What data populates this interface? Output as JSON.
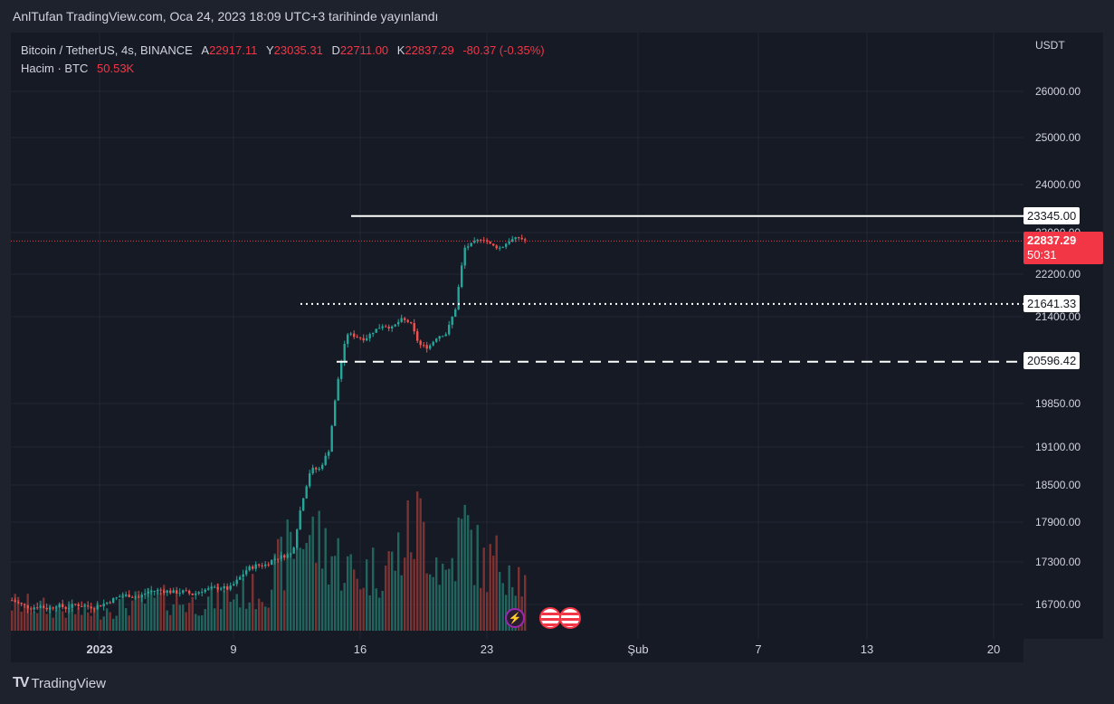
{
  "header": {
    "published_text": "AnlTufan TradingView.com, Oca 24, 2023 18:09 UTC+3 tarihinde yayınlandı"
  },
  "legend": {
    "symbol": "Bitcoin / TetherUS, 4s, BINANCE",
    "open_label": "A",
    "open": "22917.11",
    "high_label": "Y",
    "high": "23035.31",
    "low_label": "D",
    "low": "22711.00",
    "close_label": "K",
    "close": "22837.29",
    "change": "-80.37 (-0.35%)",
    "volume_label": "Hacim · BTC",
    "volume_value": "50.53K"
  },
  "price_axis": {
    "currency": "USDT",
    "ticks": [
      "26000.00",
      "25000.00",
      "24000.00",
      "23000.00",
      "22200.00",
      "21400.00",
      "19850.00",
      "19100.00",
      "18500.00",
      "17900.00",
      "17300.00",
      "16700.00"
    ]
  },
  "time_axis": {
    "ticks": [
      "2023",
      "9",
      "16",
      "23",
      "Şub",
      "7",
      "13",
      "20"
    ]
  },
  "levels": [
    {
      "value": "23345.00",
      "style": "solid"
    },
    {
      "value": "21641.33",
      "style": "dotted"
    },
    {
      "value": "20596.42",
      "style": "dashed"
    }
  ],
  "current_price": {
    "value": "22837.29",
    "countdown": "50:31"
  },
  "colors": {
    "up": "#26a69a",
    "down": "#ef5350",
    "up_volume": "#22655e",
    "down_volume": "#7b3232",
    "background": "#161a25",
    "grid": "#232734",
    "level_line": "#ffffff",
    "price_line": "#f23645"
  },
  "events": {
    "bolt_icon": "lightning-icon",
    "flag_icon": "us-flag-icon"
  },
  "branding": {
    "logo_text": "TradingView",
    "logo_mark": "TV"
  },
  "chart_data": {
    "type": "candlestick",
    "symbol": "Bitcoin / TetherUS",
    "timeframe": "4s",
    "x_labels": [
      "2023",
      "9",
      "16",
      "23",
      "Şub",
      "7",
      "13",
      "20"
    ],
    "price_ticks": [
      26000,
      25000,
      24000,
      23000,
      22200,
      21400,
      19850,
      19100,
      18500,
      17900,
      17300,
      16700
    ],
    "horizontal_levels": [
      23345.0,
      21641.33,
      20596.42
    ],
    "last_price": 22837.29,
    "close_path": [
      [
        0,
        16760
      ],
      [
        10,
        16700
      ],
      [
        20,
        16650
      ],
      [
        30,
        16680
      ],
      [
        40,
        16640
      ],
      [
        50,
        16690
      ],
      [
        60,
        16650
      ],
      [
        70,
        16700
      ],
      [
        80,
        16680
      ],
      [
        90,
        16660
      ],
      [
        100,
        16700
      ],
      [
        110,
        16760
      ],
      [
        120,
        16820
      ],
      [
        130,
        16830
      ],
      [
        140,
        16800
      ],
      [
        150,
        16880
      ],
      [
        160,
        16900
      ],
      [
        170,
        16890
      ],
      [
        180,
        16870
      ],
      [
        190,
        16880
      ],
      [
        200,
        16840
      ],
      [
        210,
        16900
      ],
      [
        220,
        16920
      ],
      [
        230,
        16940
      ],
      [
        240,
        16920
      ],
      [
        250,
        17050
      ],
      [
        260,
        17200
      ],
      [
        270,
        17250
      ],
      [
        280,
        17260
      ],
      [
        290,
        17350
      ],
      [
        300,
        17390
      ],
      [
        310,
        17430
      ],
      [
        320,
        18200
      ],
      [
        330,
        18750
      ],
      [
        340,
        18750
      ],
      [
        350,
        19050
      ],
      [
        360,
        20250
      ],
      [
        370,
        21100
      ],
      [
        380,
        21050
      ],
      [
        390,
        21000
      ],
      [
        400,
        21150
      ],
      [
        410,
        21250
      ],
      [
        420,
        21200
      ],
      [
        430,
        21350
      ],
      [
        440,
        21300
      ],
      [
        450,
        20900
      ],
      [
        460,
        20850
      ],
      [
        470,
        21050
      ],
      [
        480,
        21100
      ],
      [
        490,
        21550
      ],
      [
        500,
        22700
      ],
      [
        510,
        22800
      ],
      [
        520,
        22900
      ],
      [
        530,
        22750
      ],
      [
        540,
        22700
      ],
      [
        550,
        22850
      ],
      [
        560,
        22900
      ],
      [
        569,
        22837
      ]
    ],
    "volume_profile": [
      [
        0,
        30
      ],
      [
        40,
        25
      ],
      [
        80,
        20
      ],
      [
        120,
        28
      ],
      [
        160,
        35
      ],
      [
        200,
        30
      ],
      [
        240,
        38
      ],
      [
        280,
        45
      ],
      [
        320,
        110
      ],
      [
        350,
        90
      ],
      [
        380,
        60
      ],
      [
        420,
        75
      ],
      [
        450,
        120
      ],
      [
        480,
        60
      ],
      [
        500,
        115
      ],
      [
        520,
        70
      ],
      [
        550,
        80
      ],
      [
        569,
        45
      ]
    ]
  }
}
